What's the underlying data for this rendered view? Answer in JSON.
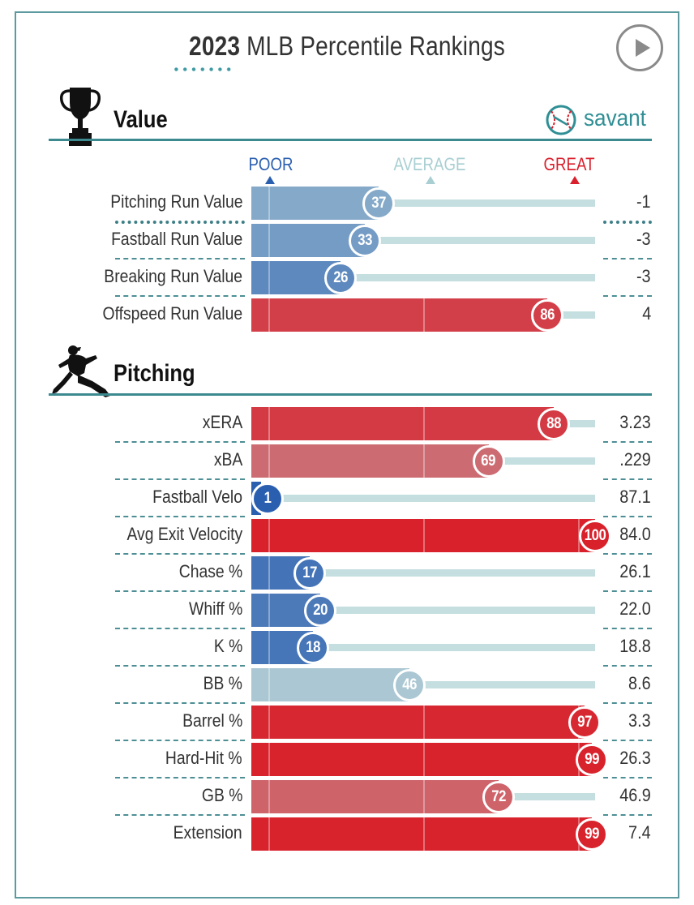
{
  "title": {
    "year": "2023",
    "rest": "MLB Percentile Rankings"
  },
  "controls": {
    "play_icon": "play-icon"
  },
  "logo": {
    "text": "savant",
    "icon": "baseball-icon"
  },
  "scale": {
    "poor": "POOR",
    "average": "AVERAGE",
    "great": "GREAT"
  },
  "colors": {
    "poor": "#2a5fb0",
    "average": "#a9cfd3",
    "great": "#d9202c",
    "accent": "#3c8a90"
  },
  "chart_data": [
    {
      "type": "bar",
      "title": "Value",
      "icon": "trophy-icon",
      "categories": [
        "Pitching Run Value",
        "Fastball Run Value",
        "Breaking Run Value",
        "Offspeed Run Value"
      ],
      "percentiles": [
        37,
        33,
        26,
        86
      ],
      "values": [
        "-1",
        "-3",
        "-3",
        "4"
      ],
      "xlim": [
        0,
        100
      ]
    },
    {
      "type": "bar",
      "title": "Pitching",
      "icon": "pitcher-icon",
      "categories": [
        "xERA",
        "xBA",
        "Fastball Velo",
        "Avg Exit Velocity",
        "Chase %",
        "Whiff %",
        "K %",
        "BB %",
        "Barrel %",
        "Hard-Hit %",
        "GB %",
        "Extension"
      ],
      "percentiles": [
        88,
        69,
        1,
        100,
        17,
        20,
        18,
        46,
        97,
        99,
        72,
        99
      ],
      "values": [
        "3.23",
        ".229",
        "87.1",
        "84.0",
        "26.1",
        "22.0",
        "18.8",
        "8.6",
        "3.3",
        "26.3",
        "46.9",
        "7.4"
      ],
      "xlim": [
        0,
        100
      ]
    }
  ]
}
